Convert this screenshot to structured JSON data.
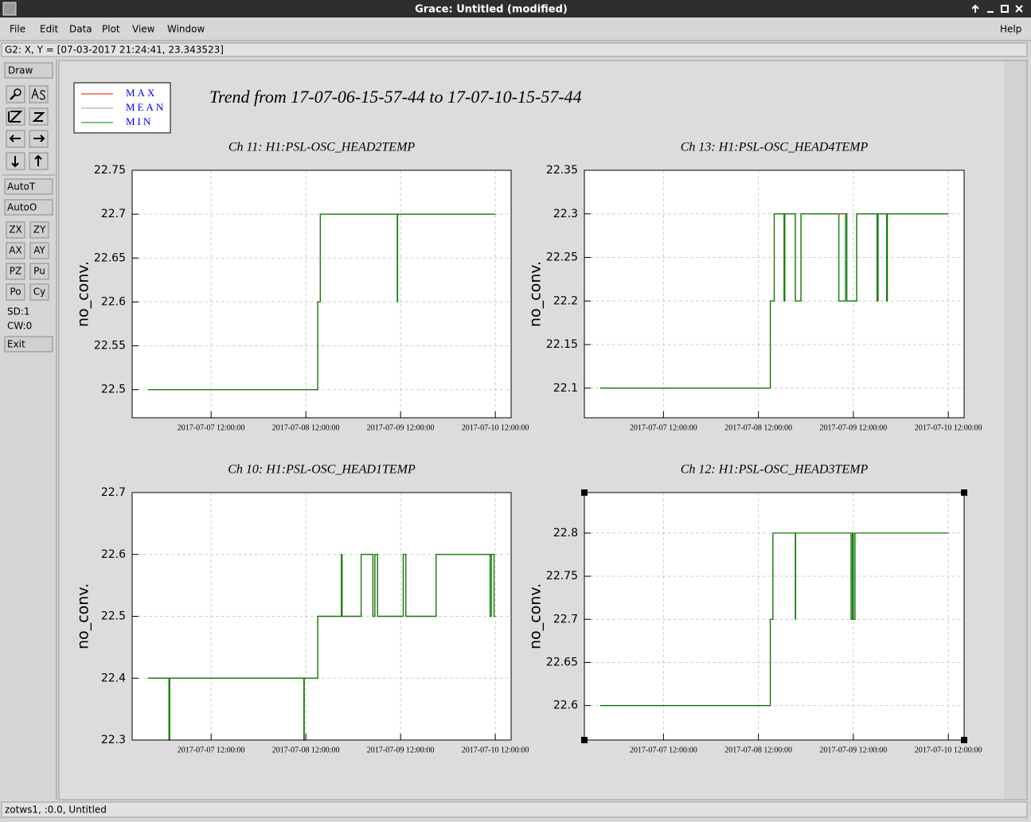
{
  "window": {
    "title": "Grace: Untitled (modified)"
  },
  "menu": {
    "items": [
      "File",
      "Edit",
      "Data",
      "Plot",
      "View",
      "Window"
    ],
    "help": "Help"
  },
  "coordinates": "G2: X, Y = [07-03-2017 21:24:41, 23.343523]",
  "toolbar": {
    "draw": "Draw",
    "auto_buttons": [
      "AutoT",
      "AutoO"
    ],
    "buttons": [
      "ZX",
      "ZY",
      "AX",
      "AY",
      "PZ",
      "Pu",
      "Po",
      "Cy"
    ],
    "info": [
      "SD:1",
      "CW:0"
    ],
    "exit": "Exit"
  },
  "status": "zotws1, :0.0, Untitled",
  "graph_title": "Trend from 17-07-06-15-57-44 to 17-07-10-15-57-44",
  "chart_data": [
    {
      "type": "line",
      "title": "Ch 11: H1:PSL-OSC_HEAD2TEMP",
      "y_label": "no_conv.",
      "x": [
        "2017-07-06 20:00:00",
        "2017-07-08 15:00:00",
        "2017-07-08 15:00:00",
        "2017-07-08 15:40:00",
        "2017-07-08 15:40:00",
        "2017-07-09 11:10:00",
        "2017-07-09 11:10:00",
        "2017-07-09 11:15:00",
        "2017-07-09 11:15:00",
        "2017-07-10 12:00:00"
      ],
      "series": [
        {
          "name": "MAX",
          "color": "#ff0000",
          "values": [
            22.5,
            22.5,
            22.6,
            22.6,
            22.7,
            22.7,
            22.7,
            22.7,
            22.7,
            22.7
          ]
        },
        {
          "name": "MEAN",
          "color": "#a0a0a0",
          "values": [
            22.5,
            22.5,
            22.6,
            22.6,
            22.7,
            22.7,
            22.6,
            22.6,
            22.7,
            22.7
          ]
        },
        {
          "name": "MIN",
          "color": "#008000",
          "values": [
            22.5,
            22.5,
            22.6,
            22.6,
            22.7,
            22.7,
            22.6,
            22.6,
            22.7,
            22.7
          ]
        }
      ],
      "xlim": [
        "2017-07-06 16:00:00",
        "2017-07-10 16:00:00"
      ],
      "xticks": [
        "2017-07-07 12:00:00",
        "2017-07-08 12:00:00",
        "2017-07-09 12:00:00",
        "2017-07-10 12:00:00"
      ],
      "ylim": [
        22.468,
        22.75
      ],
      "yticks": [
        22.5,
        22.55,
        22.6,
        22.65,
        22.7,
        22.75
      ],
      "grid": true
    },
    {
      "type": "line",
      "title": "Ch 13: H1:PSL-OSC_HEAD4TEMP",
      "y_label": "no_conv.",
      "x": [
        "2017-07-06 20:00:00",
        "2017-07-08 15:00:00",
        "2017-07-08 15:00:00",
        "2017-07-08 16:00:00",
        "2017-07-08 16:00:00",
        "2017-07-08 18:30:00",
        "2017-07-08 18:30:00",
        "2017-07-08 18:40:00",
        "2017-07-08 18:40:00",
        "2017-07-08 21:20:00",
        "2017-07-08 21:20:00",
        "2017-07-08 22:45:00",
        "2017-07-08 22:45:00",
        "2017-07-09 08:20:00",
        "2017-07-09 08:20:00",
        "2017-07-09 10:00:00",
        "2017-07-09 10:00:00",
        "2017-07-09 10:20:00",
        "2017-07-09 10:20:00",
        "2017-07-09 12:50:00",
        "2017-07-09 12:50:00",
        "2017-07-09 18:00:00",
        "2017-07-09 18:00:00",
        "2017-07-09 18:15:00",
        "2017-07-09 18:15:00",
        "2017-07-09 20:25:00",
        "2017-07-09 20:25:00",
        "2017-07-09 20:35:00",
        "2017-07-09 20:35:00",
        "2017-07-10 12:00:00"
      ],
      "series": [
        {
          "name": "MAX",
          "color": "#ff0000",
          "values": [
            22.1,
            22.1,
            22.2,
            22.2,
            22.3,
            22.3,
            22.2,
            22.2,
            22.3,
            22.3,
            22.2,
            22.2,
            22.3,
            22.3,
            22.3,
            22.3,
            22.3,
            22.3,
            22.2,
            22.2,
            22.3,
            22.3,
            22.2,
            22.2,
            22.3,
            22.3,
            22.2,
            22.2,
            22.3,
            22.3
          ]
        },
        {
          "name": "MEAN",
          "color": "#a0a0a0",
          "values": [
            22.1,
            22.1,
            22.2,
            22.2,
            22.3,
            22.3,
            22.2,
            22.2,
            22.3,
            22.3,
            22.2,
            22.2,
            22.3,
            22.3,
            22.2,
            22.2,
            22.3,
            22.3,
            22.2,
            22.2,
            22.3,
            22.3,
            22.2,
            22.2,
            22.3,
            22.3,
            22.2,
            22.2,
            22.3,
            22.3
          ]
        },
        {
          "name": "MIN",
          "color": "#008000",
          "values": [
            22.1,
            22.1,
            22.2,
            22.2,
            22.3,
            22.3,
            22.2,
            22.2,
            22.3,
            22.3,
            22.2,
            22.2,
            22.3,
            22.3,
            22.2,
            22.2,
            22.3,
            22.3,
            22.2,
            22.2,
            22.3,
            22.3,
            22.2,
            22.2,
            22.3,
            22.3,
            22.2,
            22.2,
            22.3,
            22.3
          ]
        }
      ],
      "xlim": [
        "2017-07-06 16:00:00",
        "2017-07-10 16:00:00"
      ],
      "xticks": [
        "2017-07-07 12:00:00",
        "2017-07-08 12:00:00",
        "2017-07-09 12:00:00",
        "2017-07-10 12:00:00"
      ],
      "ylim": [
        22.066,
        22.35
      ],
      "yticks": [
        22.1,
        22.15,
        22.2,
        22.25,
        22.3,
        22.35
      ],
      "grid": true
    },
    {
      "type": "line",
      "title": "Ch 10: H1:PSL-OSC_HEAD1TEMP",
      "y_label": "no_conv.",
      "x": [
        "2017-07-06 20:00:00",
        "2017-07-07 01:20:00",
        "2017-07-07 01:20:00",
        "2017-07-07 01:30:00",
        "2017-07-07 01:30:00",
        "2017-07-08 11:30:00",
        "2017-07-08 11:30:00",
        "2017-07-08 11:35:00",
        "2017-07-08 11:35:00",
        "2017-07-08 15:00:00",
        "2017-07-08 15:00:00",
        "2017-07-08 21:00:00",
        "2017-07-08 21:00:00",
        "2017-07-08 21:10:00",
        "2017-07-08 21:10:00",
        "2017-07-09 02:00:00",
        "2017-07-09 02:00:00",
        "2017-07-09 05:00:00",
        "2017-07-09 05:00:00",
        "2017-07-09 05:30:00",
        "2017-07-09 05:30:00",
        "2017-07-09 06:10:00",
        "2017-07-09 06:10:00",
        "2017-07-09 12:40:00",
        "2017-07-09 12:40:00",
        "2017-07-09 13:20:00",
        "2017-07-09 13:20:00",
        "2017-07-09 21:00:00",
        "2017-07-09 21:00:00",
        "2017-07-10 10:40:00",
        "2017-07-10 10:40:00",
        "2017-07-10 11:00:00",
        "2017-07-10 11:00:00",
        "2017-07-10 11:40:00",
        "2017-07-10 11:40:00",
        "2017-07-10 12:00:00"
      ],
      "series": [
        {
          "name": "MAX",
          "color": "#ff0000",
          "values": [
            22.4,
            22.4,
            22.3,
            22.3,
            22.4,
            22.4,
            22.3,
            22.3,
            22.4,
            22.4,
            22.5,
            22.5,
            22.6,
            22.6,
            22.5,
            22.5,
            22.6,
            22.6,
            22.5,
            22.5,
            22.6,
            22.6,
            22.5,
            22.5,
            22.6,
            22.6,
            22.5,
            22.5,
            22.6,
            22.6,
            22.6,
            22.6,
            22.6,
            22.6,
            22.5,
            22.5
          ]
        },
        {
          "name": "MEAN",
          "color": "#a0a0a0",
          "values": [
            22.4,
            22.4,
            22.3,
            22.3,
            22.4,
            22.4,
            22.3,
            22.3,
            22.4,
            22.4,
            22.5,
            22.5,
            22.6,
            22.6,
            22.5,
            22.5,
            22.6,
            22.6,
            22.5,
            22.5,
            22.6,
            22.6,
            22.5,
            22.5,
            22.6,
            22.6,
            22.5,
            22.5,
            22.6,
            22.6,
            22.5,
            22.5,
            22.6,
            22.6,
            22.5,
            22.5
          ]
        },
        {
          "name": "MIN",
          "color": "#008000",
          "values": [
            22.4,
            22.4,
            22.3,
            22.3,
            22.4,
            22.4,
            22.3,
            22.3,
            22.4,
            22.4,
            22.5,
            22.5,
            22.6,
            22.6,
            22.5,
            22.5,
            22.6,
            22.6,
            22.5,
            22.5,
            22.6,
            22.6,
            22.5,
            22.5,
            22.6,
            22.6,
            22.5,
            22.5,
            22.6,
            22.6,
            22.5,
            22.5,
            22.6,
            22.6,
            22.5,
            22.5
          ]
        }
      ],
      "xlim": [
        "2017-07-06 16:00:00",
        "2017-07-10 16:00:00"
      ],
      "xticks": [
        "2017-07-07 12:00:00",
        "2017-07-08 12:00:00",
        "2017-07-09 12:00:00",
        "2017-07-10 12:00:00"
      ],
      "ylim": [
        22.3,
        22.7
      ],
      "yticks": [
        22.3,
        22.4,
        22.5,
        22.6,
        22.7
      ],
      "grid": true
    },
    {
      "type": "line",
      "title": "Ch 12: H1:PSL-OSC_HEAD3TEMP",
      "y_label": "no_conv.",
      "x": [
        "2017-07-06 20:00:00",
        "2017-07-08 15:00:00",
        "2017-07-08 15:00:00",
        "2017-07-08 15:40:00",
        "2017-07-08 15:40:00",
        "2017-07-08 21:20:00",
        "2017-07-08 21:20:00",
        "2017-07-08 21:25:00",
        "2017-07-08 21:25:00",
        "2017-07-09 11:25:00",
        "2017-07-09 11:25:00",
        "2017-07-09 11:45:00",
        "2017-07-09 11:45:00",
        "2017-07-09 12:00:00",
        "2017-07-09 12:00:00",
        "2017-07-09 12:25:00",
        "2017-07-09 12:25:00",
        "2017-07-10 12:00:00"
      ],
      "series": [
        {
          "name": "MAX",
          "color": "#ff0000",
          "values": [
            22.6,
            22.6,
            22.7,
            22.7,
            22.8,
            22.8,
            22.7,
            22.7,
            22.8,
            22.8,
            22.7,
            22.7,
            22.8,
            22.8,
            22.7,
            22.7,
            22.8,
            22.8
          ]
        },
        {
          "name": "MEAN",
          "color": "#a0a0a0",
          "values": [
            22.6,
            22.6,
            22.7,
            22.7,
            22.8,
            22.8,
            22.7,
            22.7,
            22.8,
            22.8,
            22.7,
            22.7,
            22.8,
            22.8,
            22.7,
            22.7,
            22.8,
            22.8
          ]
        },
        {
          "name": "MIN",
          "color": "#008000",
          "values": [
            22.6,
            22.6,
            22.7,
            22.7,
            22.8,
            22.8,
            22.7,
            22.7,
            22.8,
            22.8,
            22.7,
            22.7,
            22.8,
            22.8,
            22.7,
            22.7,
            22.8,
            22.8
          ]
        }
      ],
      "xlim": [
        "2017-07-06 16:00:00",
        "2017-07-10 16:00:00"
      ],
      "xticks": [
        "2017-07-07 12:00:00",
        "2017-07-08 12:00:00",
        "2017-07-09 12:00:00",
        "2017-07-10 12:00:00"
      ],
      "ylim": [
        22.56,
        22.847
      ],
      "yticks": [
        22.6,
        22.65,
        22.7,
        22.75,
        22.8
      ],
      "grid": true
    }
  ]
}
